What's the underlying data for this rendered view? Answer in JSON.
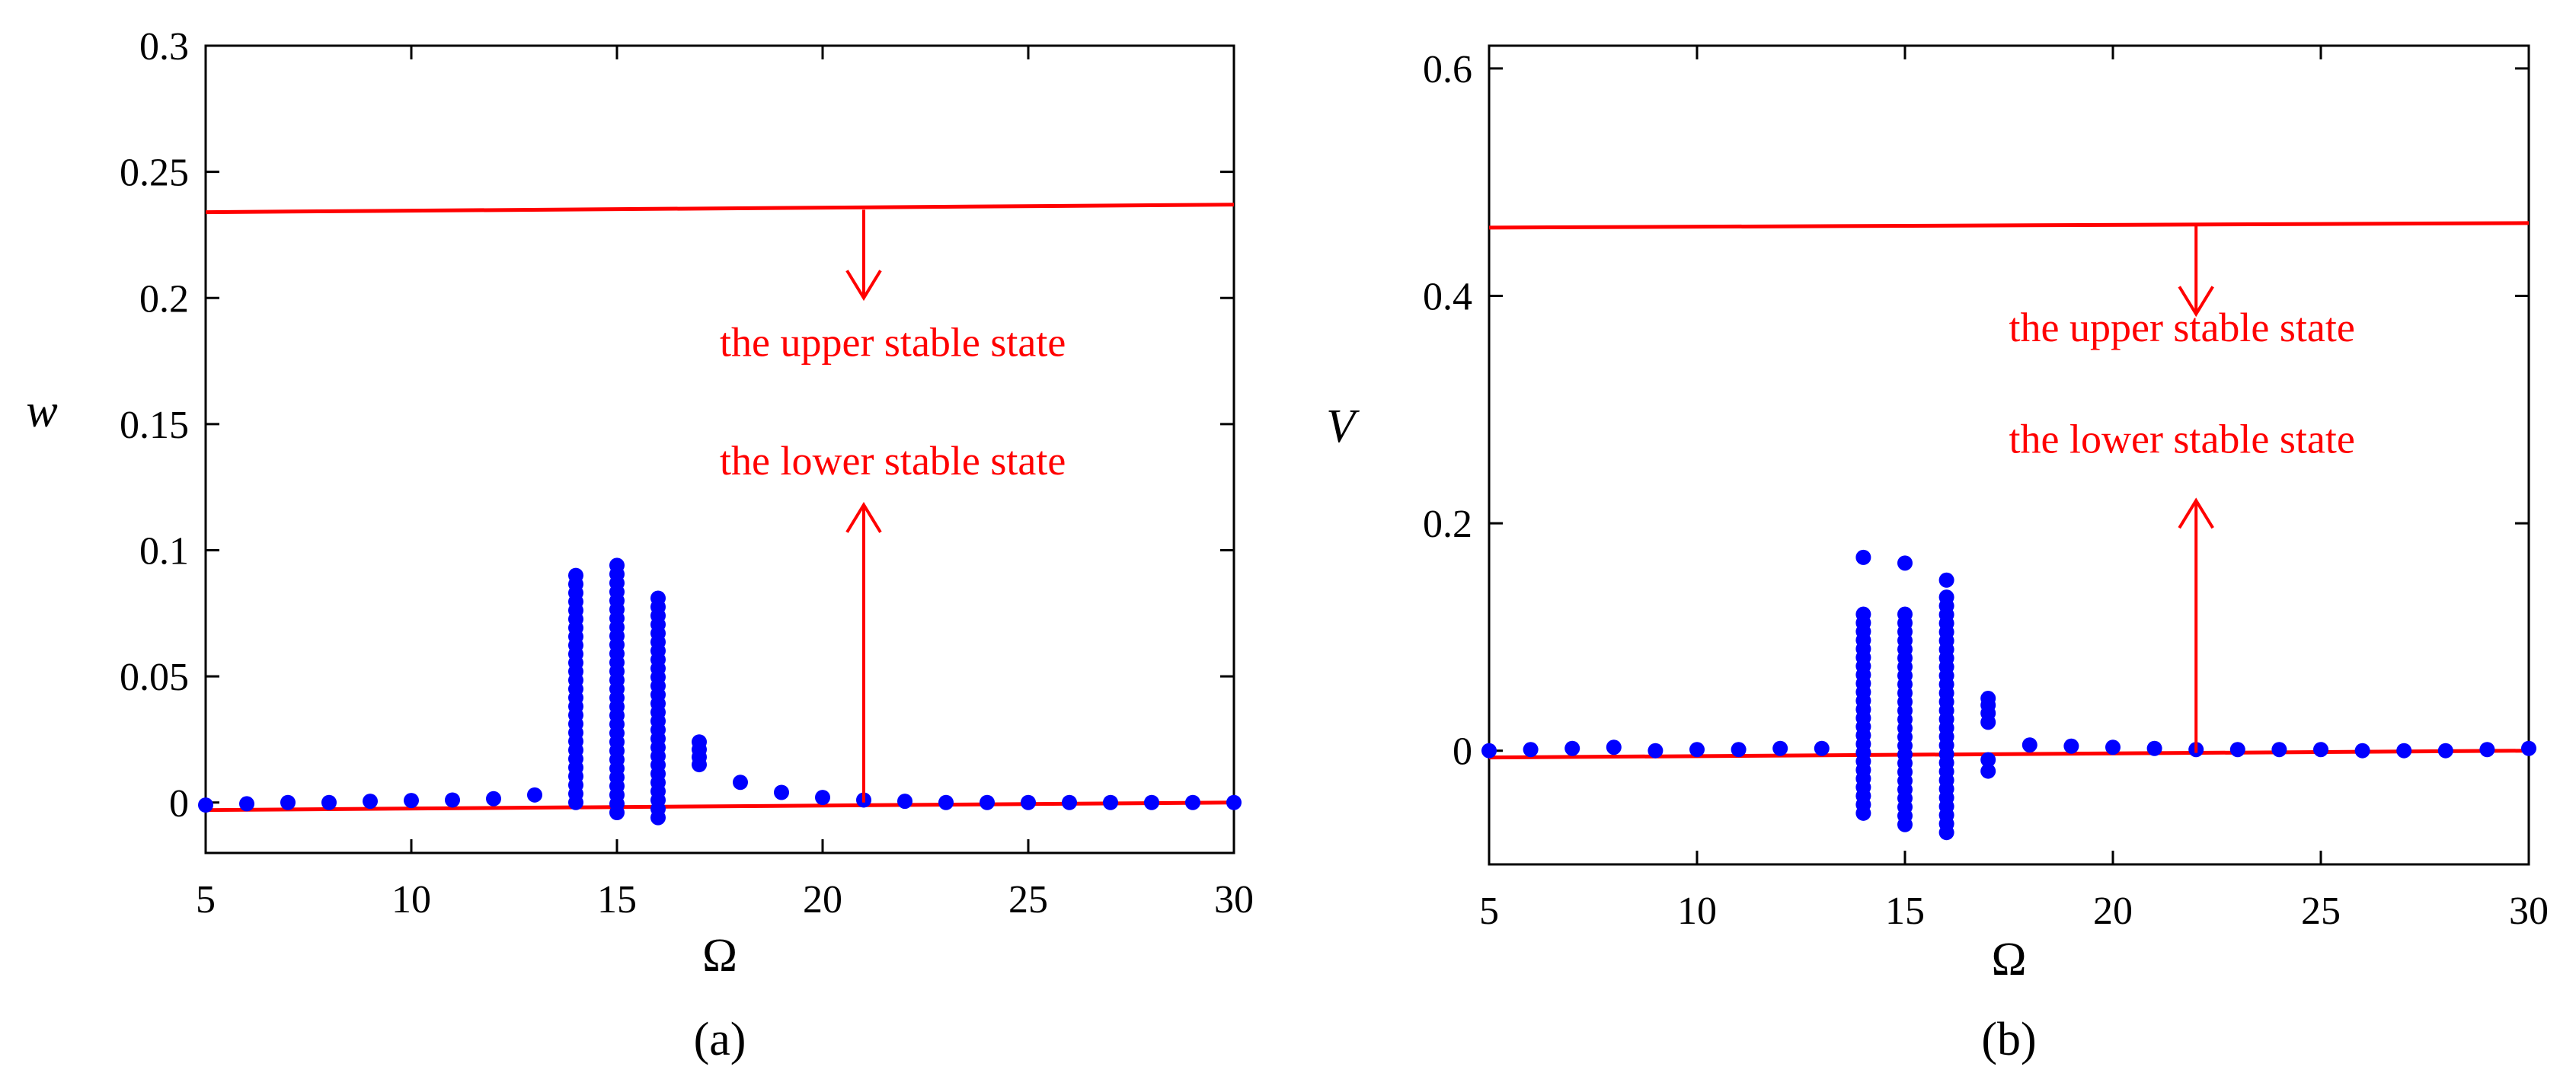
{
  "colors": {
    "points": "#0000ff",
    "lines": "#ff0000",
    "axes": "#000000",
    "annotations": "#ff0000"
  },
  "chart_data": [
    {
      "type": "scatter",
      "panel_label": "(a)",
      "xlabel": "Ω",
      "ylabel": "w",
      "xlim": [
        5,
        30
      ],
      "ylim": [
        -0.02,
        0.3
      ],
      "xticks": [
        5,
        10,
        15,
        20,
        25,
        30
      ],
      "yticks": [
        0,
        0.05,
        0.1,
        0.15,
        0.2,
        0.25,
        0.3
      ],
      "ytick_labels": [
        "0",
        "0.05",
        "0.1",
        "0.15",
        "0.2",
        "0.25",
        "0.3"
      ],
      "points": [
        [
          5,
          -0.001
        ],
        [
          6,
          -0.0005
        ],
        [
          7,
          0
        ],
        [
          8,
          0
        ],
        [
          9,
          0.0005
        ],
        [
          10,
          0.0008
        ],
        [
          11,
          0.001
        ],
        [
          12,
          0.0015
        ],
        [
          13,
          0.003
        ],
        [
          17,
          0.015
        ],
        [
          17,
          0.018
        ],
        [
          17,
          0.021
        ],
        [
          17,
          0.024
        ],
        [
          18,
          0.008
        ],
        [
          19,
          0.004
        ],
        [
          20,
          0.002
        ],
        [
          21,
          0.001
        ],
        [
          22,
          0.0005
        ],
        [
          23,
          0
        ],
        [
          24,
          0
        ],
        [
          25,
          0
        ],
        [
          26,
          0
        ],
        [
          27,
          0
        ],
        [
          28,
          0
        ],
        [
          29,
          0
        ],
        [
          30,
          0
        ]
      ],
      "point_columns": [
        {
          "x": 14,
          "ymin": 0,
          "ymax": 0.09
        },
        {
          "x": 15,
          "ymin": -0.004,
          "ymax": 0.094
        },
        {
          "x": 16,
          "ymin": -0.006,
          "ymax": 0.081
        }
      ],
      "lines": [
        {
          "label": "upper",
          "x": [
            5,
            30
          ],
          "y": [
            0.234,
            0.237
          ]
        },
        {
          "label": "lower",
          "x": [
            5,
            30
          ],
          "y": [
            -0.003,
            0.0
          ]
        }
      ],
      "annotations": [
        {
          "text": "the upper stable state",
          "x": 17.5,
          "y": 0.177,
          "arrow_x": 21,
          "arrow_from": 0.235,
          "arrow_to": 0.2
        },
        {
          "text": "the lower stable state",
          "x": 17.5,
          "y": 0.13,
          "arrow_x": 21,
          "arrow_from": 0.0,
          "arrow_to": 0.118
        }
      ]
    },
    {
      "type": "scatter",
      "panel_label": "(b)",
      "xlabel": "Ω",
      "ylabel": "V",
      "xlim": [
        5,
        30
      ],
      "ylim": [
        -0.1,
        0.62
      ],
      "xticks": [
        5,
        10,
        15,
        20,
        25,
        30
      ],
      "yticks": [
        0,
        0.2,
        0.4,
        0.6
      ],
      "ytick_labels": [
        "0",
        "0.2",
        "0.4",
        "0.6"
      ],
      "points": [
        [
          5,
          0.0
        ],
        [
          6,
          0.001
        ],
        [
          7,
          0.002
        ],
        [
          8,
          0.003
        ],
        [
          9,
          0.0
        ],
        [
          10,
          0.001
        ],
        [
          11,
          0.001
        ],
        [
          12,
          0.002
        ],
        [
          13,
          0.002
        ],
        [
          14,
          0.17
        ],
        [
          15,
          0.165
        ],
        [
          16,
          0.15
        ],
        [
          17,
          -0.018
        ],
        [
          17,
          -0.008
        ],
        [
          17,
          0.025
        ],
        [
          17,
          0.033
        ],
        [
          17,
          0.04
        ],
        [
          17,
          0.046
        ],
        [
          18,
          0.005
        ],
        [
          19,
          0.004
        ],
        [
          20,
          0.003
        ],
        [
          21,
          0.002
        ],
        [
          22,
          0.001
        ],
        [
          23,
          0.001
        ],
        [
          24,
          0.001
        ],
        [
          25,
          0.001
        ],
        [
          26,
          0.0
        ],
        [
          27,
          0.0
        ],
        [
          28,
          0.0
        ],
        [
          29,
          0.001
        ],
        [
          30,
          0.002
        ]
      ],
      "point_columns": [
        {
          "x": 14,
          "ymin": -0.055,
          "ymax": 0.12
        },
        {
          "x": 15,
          "ymin": -0.065,
          "ymax": 0.12
        },
        {
          "x": 16,
          "ymin": -0.072,
          "ymax": 0.135
        }
      ],
      "lines": [
        {
          "label": "upper",
          "x": [
            5,
            30
          ],
          "y": [
            0.46,
            0.464
          ]
        },
        {
          "label": "lower",
          "x": [
            5,
            30
          ],
          "y": [
            -0.006,
            0.0
          ]
        }
      ],
      "annotations": [
        {
          "text": "the upper stable state",
          "x": 17.5,
          "y": 0.36,
          "arrow_x": 22,
          "arrow_from": 0.462,
          "arrow_to": 0.384
        },
        {
          "text": "the lower stable state",
          "x": 17.5,
          "y": 0.262,
          "arrow_x": 22,
          "arrow_from": -0.002,
          "arrow_to": 0.22
        }
      ]
    }
  ]
}
